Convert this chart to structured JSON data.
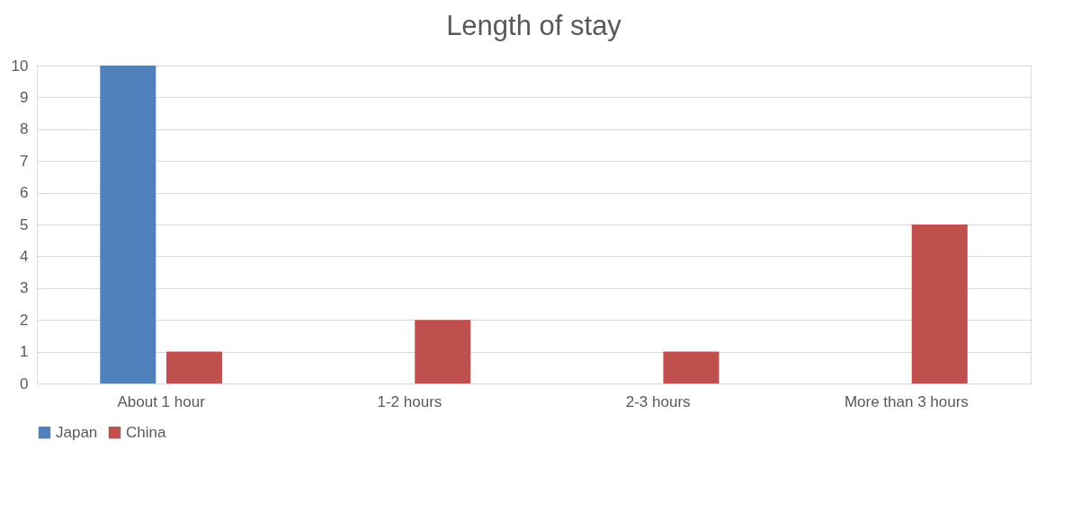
{
  "chart_data": {
    "type": "bar",
    "title": "Length of stay",
    "categories": [
      "About 1 hour",
      "1-2 hours",
      "2-3 hours",
      "More than 3 hours"
    ],
    "series": [
      {
        "name": "Japan",
        "color": "#4f81bd",
        "values": [
          10,
          0,
          0,
          0
        ]
      },
      {
        "name": "China",
        "color": "#c0504d",
        "values": [
          1,
          2,
          1,
          5
        ]
      }
    ],
    "ylim": [
      0,
      10
    ],
    "yticks": [
      0,
      1,
      2,
      3,
      4,
      5,
      6,
      7,
      8,
      9,
      10
    ],
    "grid": "y",
    "legend": "bottom"
  }
}
